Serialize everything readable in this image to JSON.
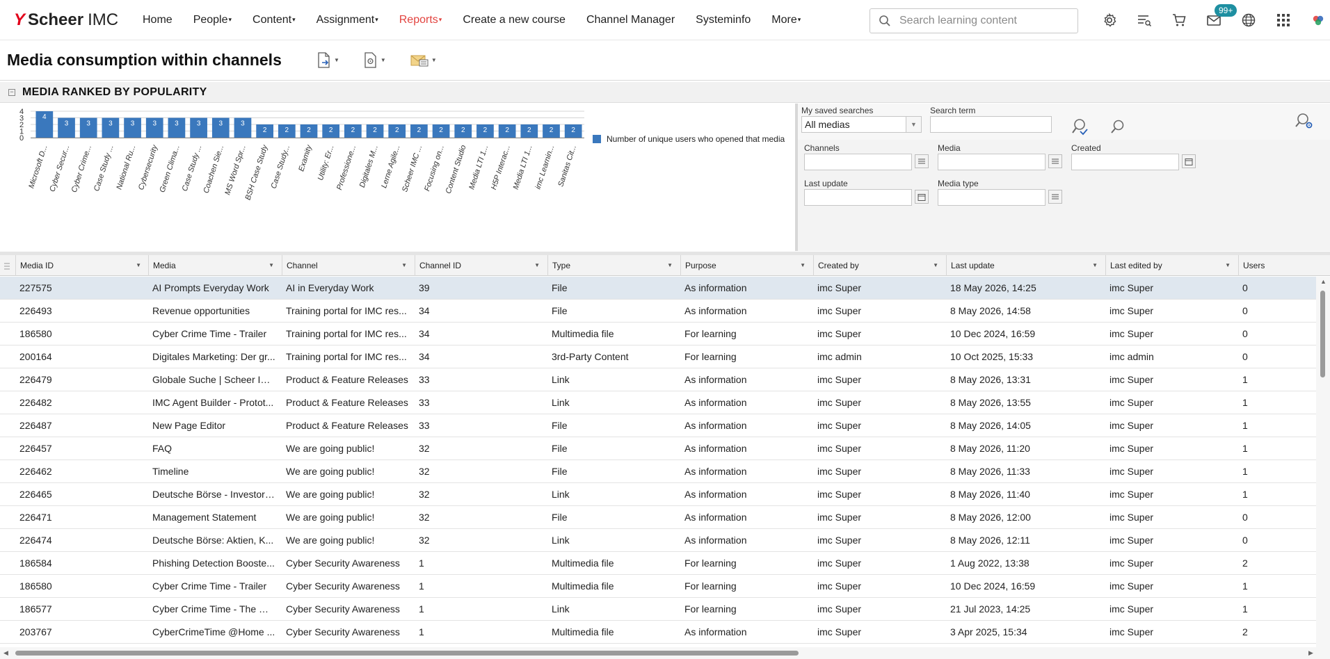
{
  "brand": {
    "mark": "Y",
    "name_bold": "Scheer",
    "name_light": "IMC"
  },
  "nav": {
    "items": [
      {
        "label": "Home",
        "dropdown": false,
        "active": false
      },
      {
        "label": "People",
        "dropdown": true,
        "active": false
      },
      {
        "label": "Content",
        "dropdown": true,
        "active": false
      },
      {
        "label": "Assignment",
        "dropdown": true,
        "active": false
      },
      {
        "label": "Reports",
        "dropdown": true,
        "active": true
      },
      {
        "label": "Create a new course",
        "dropdown": false,
        "active": false
      },
      {
        "label": "Channel Manager",
        "dropdown": false,
        "active": false
      },
      {
        "label": "Systeminfo",
        "dropdown": false,
        "active": false
      },
      {
        "label": "More",
        "dropdown": true,
        "active": false
      }
    ],
    "search_placeholder": "Search learning content",
    "inbox_badge": "99+"
  },
  "page": {
    "title": "Media consumption within channels"
  },
  "panel": {
    "title": "MEDIA RANKED BY POPULARITY"
  },
  "chart_data": {
    "type": "bar",
    "categories": [
      "Microsoft D...",
      "Cyber Secur...",
      "Cyber Crime...",
      "Case Study ...",
      "National Ru...",
      "Cybersecurity",
      "Green Clima...",
      "Case Study ...",
      "Coachen Sie...",
      "MS Word Spr...",
      "BSH Case Study",
      "Case Study...",
      "Examity",
      "Utility: Er...",
      "Professione...",
      "Digitales M...",
      "Lerne Agile...",
      "Scheer IMC ...",
      "Focusing on...",
      "Content Studio",
      "Media LTI 1...",
      "H5P Interac...",
      "Media LTI 1...",
      "imc Learnin...",
      "Sanitas Cit..."
    ],
    "series": [
      {
        "name": "Number of unique users who opened that media",
        "values": [
          4,
          3,
          3,
          3,
          3,
          3,
          3,
          3,
          3,
          3,
          2,
          2,
          2,
          2,
          2,
          2,
          2,
          2,
          2,
          2,
          2,
          2,
          2,
          2,
          2
        ]
      }
    ],
    "yticks": [
      0,
      1,
      2,
      3,
      4
    ],
    "ylim": [
      0,
      4
    ],
    "grid": true,
    "legend_position": "right",
    "bar_color": "#3a78bd"
  },
  "filters": {
    "saved_searches_label": "My saved searches",
    "saved_searches_value": "All medias",
    "search_term_label": "Search term",
    "search_term_value": "",
    "channels_label": "Channels",
    "media_label": "Media",
    "created_label": "Created",
    "last_update_label": "Last update",
    "media_type_label": "Media type"
  },
  "grid": {
    "columns": [
      "Media ID",
      "Media",
      "Channel",
      "Channel ID",
      "Type",
      "Purpose",
      "Created by",
      "Last update",
      "Last edited by",
      "Users"
    ],
    "rows": [
      [
        "227575",
        "AI Prompts Everyday Work",
        "AI in Everyday Work",
        "39",
        "File",
        "As information",
        "imc Super",
        "18 May 2026, 14:25",
        "imc Super",
        "0"
      ],
      [
        "226493",
        "Revenue opportunities",
        "Training portal for IMC res...",
        "34",
        "File",
        "As information",
        "imc Super",
        "8 May 2026, 14:58",
        "imc Super",
        "0"
      ],
      [
        "186580",
        "Cyber Crime Time - Trailer",
        "Training portal for IMC res...",
        "34",
        "Multimedia file",
        "For learning",
        "imc Super",
        "10 Dec 2024, 16:59",
        "imc Super",
        "0"
      ],
      [
        "200164",
        "Digitales Marketing: Der gr...",
        "Training portal for IMC res...",
        "34",
        "3rd-Party Content",
        "For learning",
        "imc admin",
        "10 Oct 2025, 15:33",
        "imc admin",
        "0"
      ],
      [
        "226479",
        "Globale Suche | Scheer IM...",
        "Product & Feature Releases",
        "33",
        "Link",
        "As information",
        "imc Super",
        "8 May 2026, 13:31",
        "imc Super",
        "1"
      ],
      [
        "226482",
        "IMC Agent Builder - Protot...",
        "Product & Feature Releases",
        "33",
        "Link",
        "As information",
        "imc Super",
        "8 May 2026, 13:55",
        "imc Super",
        "1"
      ],
      [
        "226487",
        "New Page Editor",
        "Product & Feature Releases",
        "33",
        "File",
        "As information",
        "imc Super",
        "8 May 2026, 14:05",
        "imc Super",
        "1"
      ],
      [
        "226457",
        "FAQ",
        "We are going public!",
        "32",
        "File",
        "As information",
        "imc Super",
        "8 May 2026, 11:20",
        "imc Super",
        "1"
      ],
      [
        "226462",
        "Timeline",
        "We are going public!",
        "32",
        "File",
        "As information",
        "imc Super",
        "8 May 2026, 11:33",
        "imc Super",
        "1"
      ],
      [
        "226465",
        "Deutsche Börse - Investor ...",
        "We are going public!",
        "32",
        "Link",
        "As information",
        "imc Super",
        "8 May 2026, 11:40",
        "imc Super",
        "1"
      ],
      [
        "226471",
        "Management Statement",
        "We are going public!",
        "32",
        "File",
        "As information",
        "imc Super",
        "8 May 2026, 12:00",
        "imc Super",
        "0"
      ],
      [
        "226474",
        "Deutsche Börse: Aktien, K...",
        "We are going public!",
        "32",
        "Link",
        "As information",
        "imc Super",
        "8 May 2026, 12:11",
        "imc Super",
        "0"
      ],
      [
        "186584",
        "Phishing Detection Booste...",
        "Cyber Security Awareness",
        "1",
        "Multimedia file",
        "For learning",
        "imc Super",
        "1 Aug 2022, 13:38",
        "imc Super",
        "2"
      ],
      [
        "186580",
        "Cyber Crime Time - Trailer",
        "Cyber Security Awareness",
        "1",
        "Multimedia file",
        "For learning",
        "imc Super",
        "10 Dec 2024, 16:59",
        "imc Super",
        "1"
      ],
      [
        "186577",
        "Cyber Crime Time - The Ga...",
        "Cyber Security Awareness",
        "1",
        "Link",
        "For learning",
        "imc Super",
        "21 Jul 2023, 14:25",
        "imc Super",
        "1"
      ],
      [
        "203767",
        "CyberCrimeTime @Home ...",
        "Cyber Security Awareness",
        "1",
        "Multimedia file",
        "As information",
        "imc Super",
        "3 Apr 2025, 15:34",
        "imc Super",
        "2"
      ]
    ]
  },
  "colors": {
    "accent_active": "#e2433f",
    "brand_red": "#e2001a",
    "bar": "#3a78bd",
    "badge": "#1e8fa1",
    "selected_row": "#dfe7ef"
  }
}
